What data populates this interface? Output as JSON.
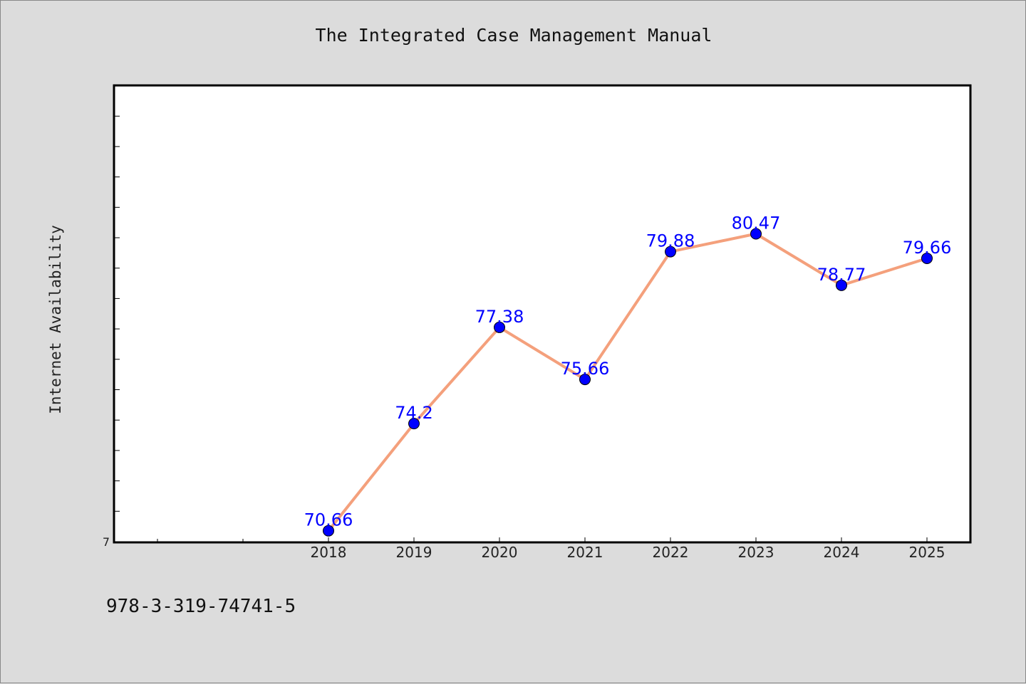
{
  "chart_data": {
    "type": "line",
    "title": "The Integrated Case Management Manual",
    "xlabel": "",
    "ylabel": "Internet Availability",
    "categories": [
      "2018",
      "2019",
      "2020",
      "2021",
      "2022",
      "2023",
      "2024",
      "2025"
    ],
    "series": [
      {
        "values": [
          70.66,
          74.2,
          77.38,
          75.66,
          79.88,
          80.47,
          78.77,
          79.66
        ]
      }
    ],
    "data_labels": [
      "70.66",
      "74.2",
      "77.38",
      "75.66",
      "79.88",
      "80.47",
      "78.77",
      "79.66"
    ],
    "ylim": [
      70.3,
      85.35
    ],
    "y_tick_label": "7",
    "grid": false,
    "line_color": "#f4a07c",
    "marker_color": "#0000ff",
    "label_color": "#0000ff"
  },
  "footer": {
    "isbn": "978-3-319-74741-5"
  }
}
